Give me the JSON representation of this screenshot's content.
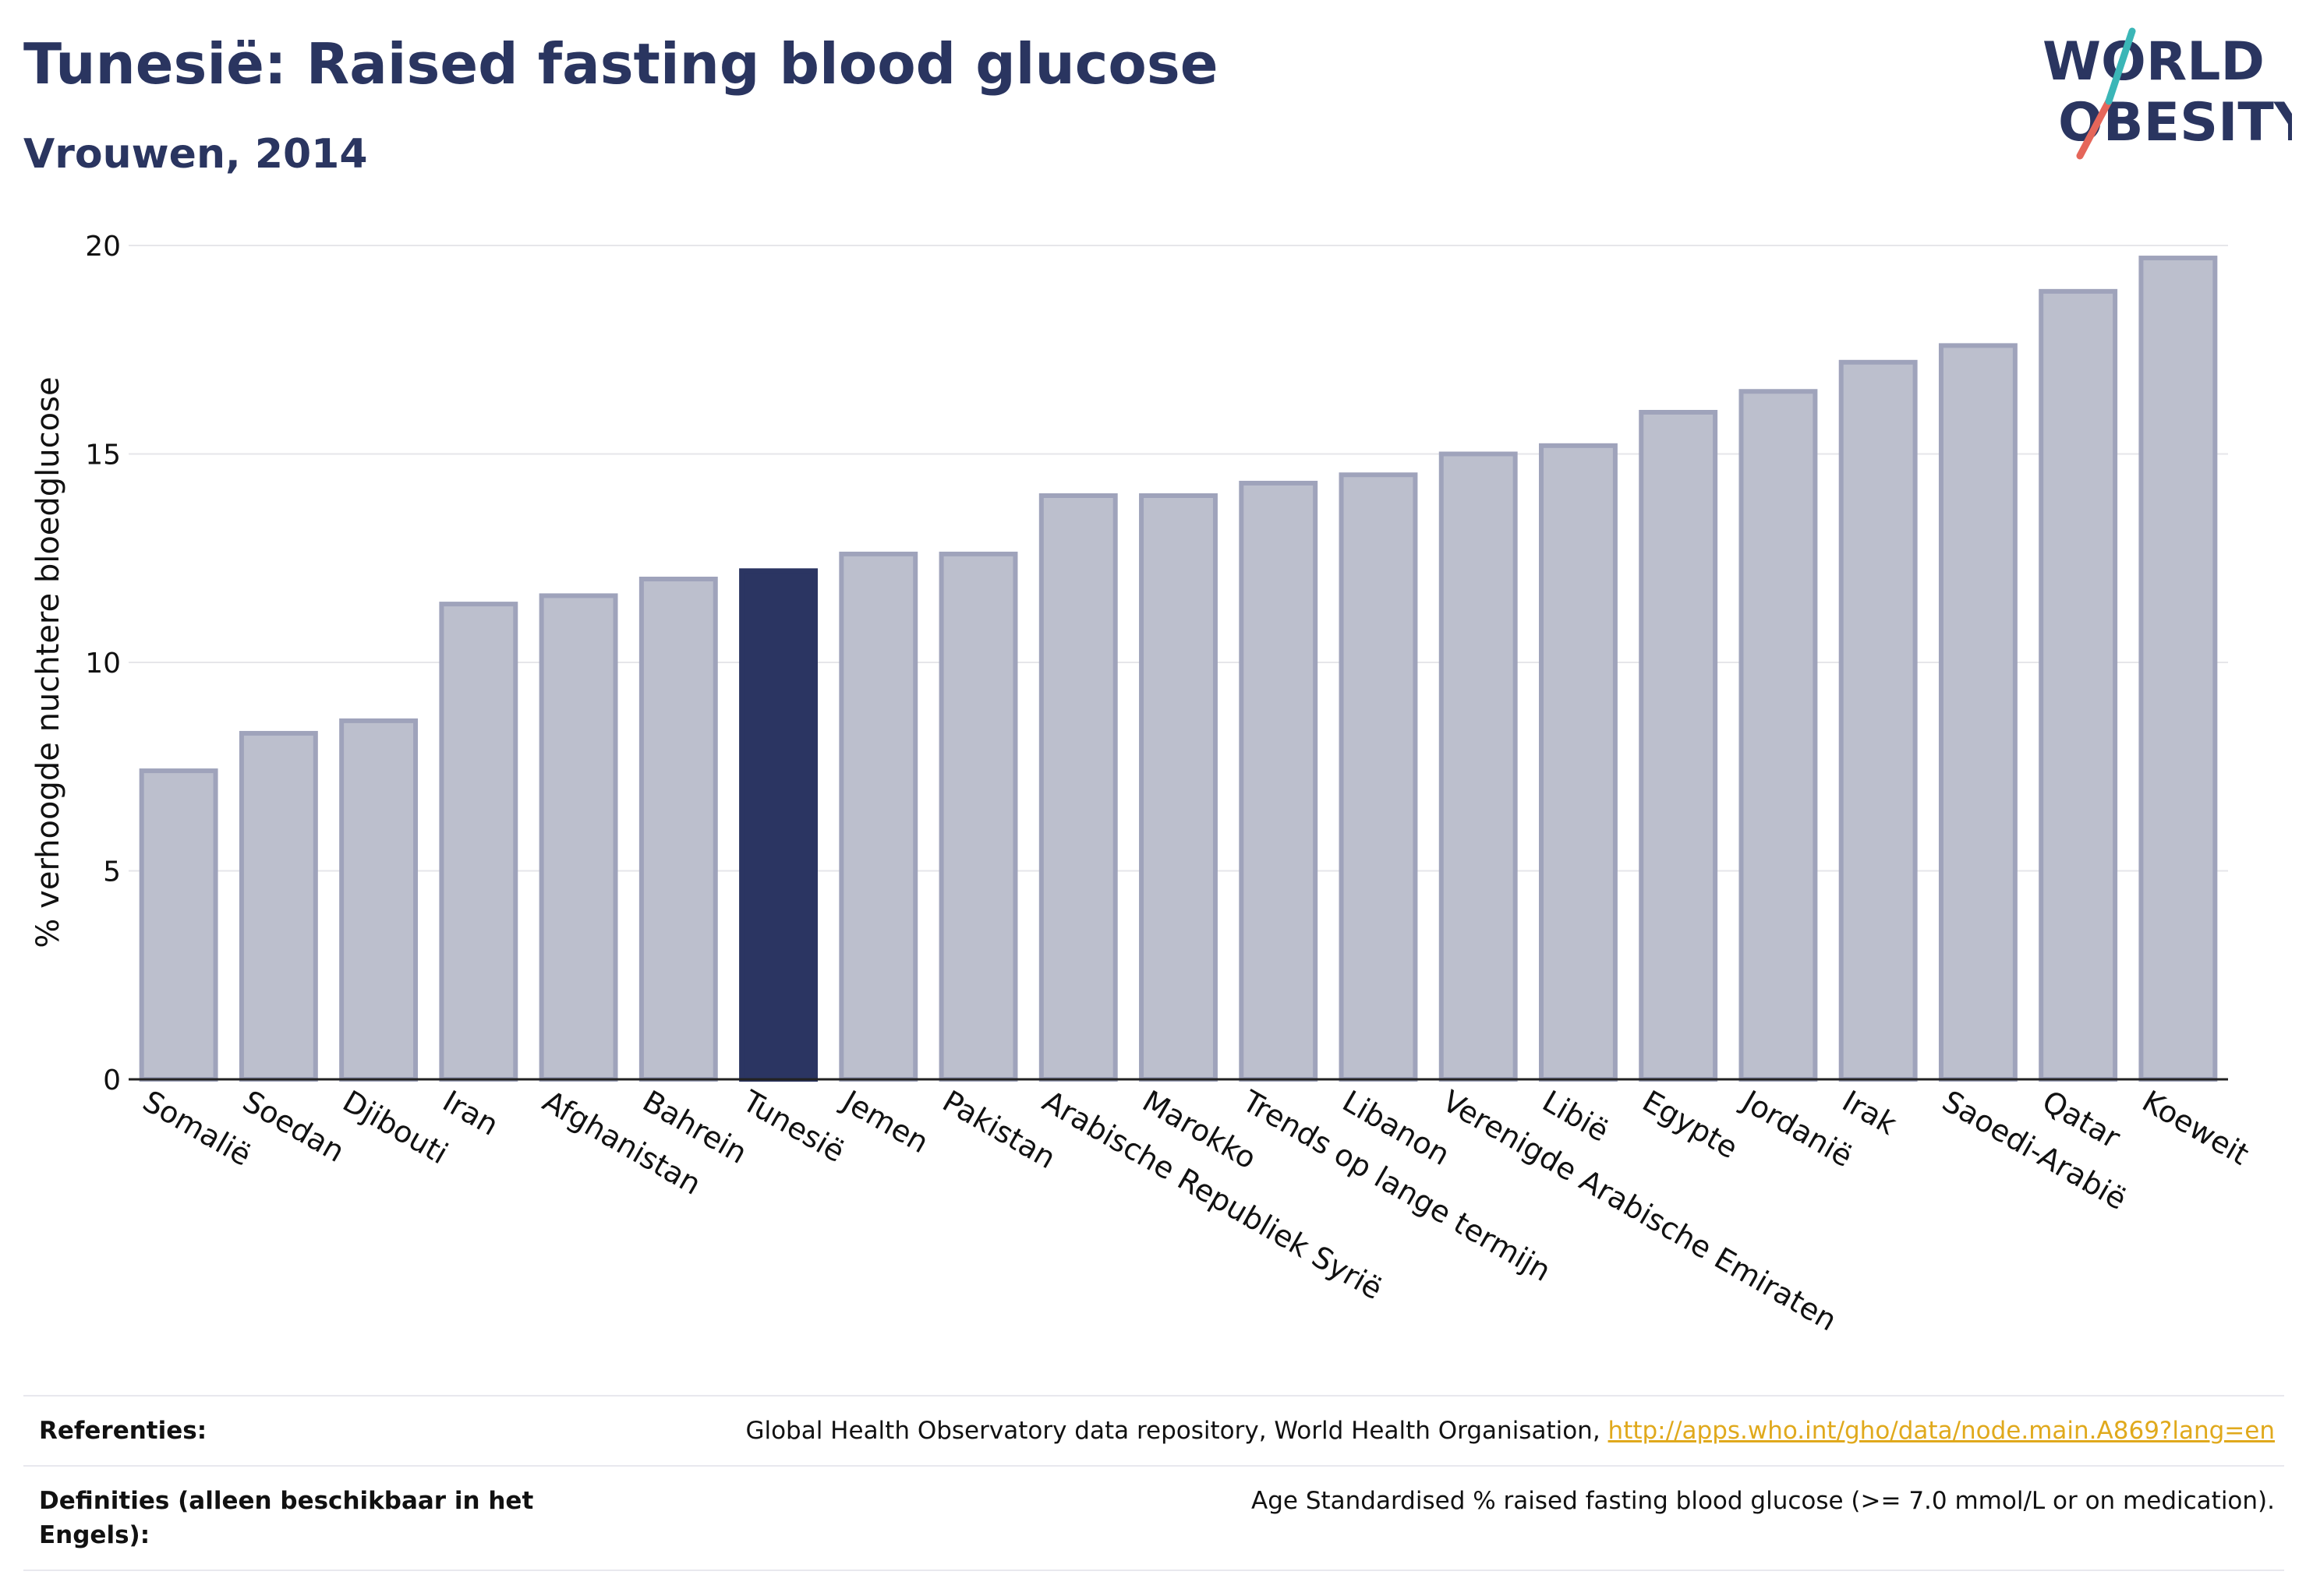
{
  "header": {
    "title": "Tunesië: Raised fasting blood glucose",
    "subtitle": "Vrouwen, 2014"
  },
  "logo": {
    "line1": "WORLD",
    "line2": "OBESITY"
  },
  "colors": {
    "highlight_bar": "#2b3562",
    "other_bar": "#bcbfcd",
    "bar_border": "#9fa3bb",
    "text": "#2a3560",
    "logo_teal": "#3bb6b7",
    "logo_red": "#e5665a"
  },
  "chart_data": {
    "type": "bar",
    "categories": [
      "Somalië",
      "Soedan",
      "Djibouti",
      "Iran",
      "Afghanistan",
      "Bahrein",
      "Tunesië",
      "Jemen",
      "Pakistan",
      "Arabische Republiek Syrië",
      "Marokko",
      "Trends op lange termijn",
      "Libanon",
      "Verenigde Arabische Emiraten",
      "Libië",
      "Egypte",
      "Jordanië",
      "Irak",
      "Saoedi-Arabië",
      "Qatar",
      "Koeweit"
    ],
    "values": [
      7.4,
      8.3,
      8.6,
      11.4,
      11.6,
      12.0,
      12.2,
      12.6,
      12.6,
      14.0,
      14.0,
      14.3,
      14.5,
      15.0,
      15.2,
      16.0,
      16.5,
      17.2,
      17.6,
      18.9,
      19.7
    ],
    "highlight": "Tunesië",
    "ylabel": "% verhoogde nuchtere bloedglucose",
    "xlabel": "",
    "ylim": [
      0,
      20
    ],
    "yticks": [
      "0",
      "5",
      "10",
      "15",
      "20"
    ],
    "grid": true
  },
  "references": {
    "row1_key": "Referenties:",
    "row1_text": "Global Health Observatory data repository, World Health Organisation, ",
    "row1_link": "http://apps.who.int/gho/data/node.main.A869?lang=en",
    "row2_key": "Definities (alleen beschikbaar in het Engels):",
    "row2_text": "Age Standardised % raised fasting blood glucose (>= 7.0 mmol/L or on medication)."
  }
}
